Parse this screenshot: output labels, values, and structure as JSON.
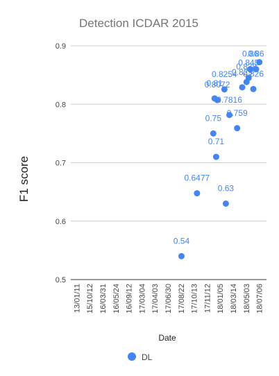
{
  "chart_data": {
    "type": "scatter",
    "title": "Detection ICDAR 2015",
    "xlabel": "Date",
    "ylabel": "F1 score",
    "ylim": [
      0.5,
      0.9
    ],
    "yticks": [
      "0.5",
      "0.6",
      "0.7",
      "0.8",
      "0.9"
    ],
    "xlim": [
      "2013-01-11",
      "2018-09-20"
    ],
    "xticks": [
      "13/01/11",
      "15/10/12",
      "16/03/31",
      "16/05/24",
      "16/09/12",
      "17/03/04",
      "17/04/03",
      "17/06/30",
      "17/08/22",
      "17/10/13",
      "17/11/12",
      "18/01/05",
      "18/03/14",
      "18/05/03",
      "18/07/06"
    ],
    "grid": true,
    "legend": "bottom",
    "color": "#4285f4",
    "series": [
      {
        "name": "DL",
        "points": [
          {
            "x": "2016-03-31",
            "y": 0.54,
            "label": "0.54"
          },
          {
            "x": "2016-09-12",
            "y": 0.6477,
            "label": "0.6477"
          },
          {
            "x": "2017-03-04",
            "y": 0.75,
            "label": "0.75"
          },
          {
            "x": "2017-03-18",
            "y": 0.81,
            "label": "0.81"
          },
          {
            "x": "2017-04-03",
            "y": 0.71,
            "label": "0.71"
          },
          {
            "x": "2017-04-15",
            "y": 0.8072,
            "label": "0.8072"
          },
          {
            "x": "2017-06-30",
            "y": 0.8254,
            "label": "0.8254"
          },
          {
            "x": "2017-07-15",
            "y": 0.63,
            "label": "0.63"
          },
          {
            "x": "2017-08-22",
            "y": 0.7816,
            "label": "0.7816"
          },
          {
            "x": "2017-11-12",
            "y": 0.759,
            "label": "0.759"
          },
          {
            "x": "2018-01-05",
            "y": 0.829,
            "label": "0.829"
          },
          {
            "x": "2018-02-20",
            "y": 0.838,
            "label": "0.838"
          },
          {
            "x": "2018-03-14",
            "y": 0.845,
            "label": "0.845"
          },
          {
            "x": "2018-04-01",
            "y": 0.86,
            "label": "0.86"
          },
          {
            "x": "2018-05-03",
            "y": 0.826,
            "label": "0.826"
          },
          {
            "x": "2018-06-01",
            "y": 0.86,
            "label": "0.86"
          },
          {
            "x": "2018-07-06",
            "y": 0.872,
            "label": ""
          }
        ]
      }
    ]
  }
}
